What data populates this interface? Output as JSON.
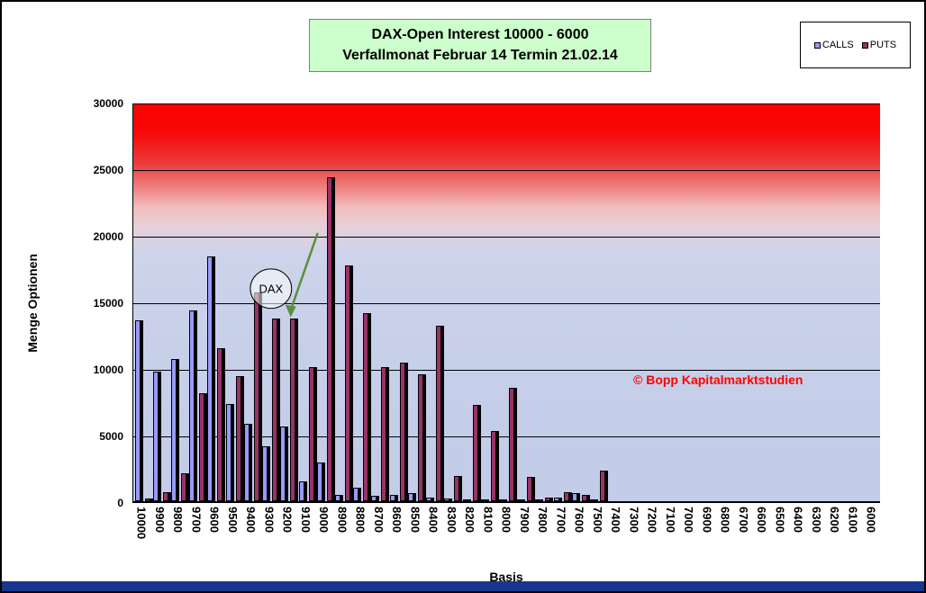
{
  "title": {
    "line1": "DAX-Open Interest 10000 -  6000",
    "line2": "Verfallmonat  Februar 14  Termin 21.02.14"
  },
  "watermark": "© Bopp Kapitalmarktstudien",
  "annotation": {
    "label": "DAX"
  },
  "colors": {
    "title_bg": "#ccffcc",
    "watermark": "#ff0000",
    "calls": "#9999FF",
    "puts": "#993366",
    "bottom_bar": "#16368f",
    "arrow": "#5a8f3c"
  },
  "chart_data": {
    "type": "bar",
    "title": "DAX-Open Interest 10000 -  6000 / Verfallmonat Februar 14 Termin 21.02.14",
    "xlabel": "Basis",
    "ylabel": "Menge Optionen",
    "ylim": [
      0,
      30000
    ],
    "ytick_interval": 5000,
    "yticks": [
      0,
      5000,
      10000,
      15000,
      20000,
      25000,
      30000
    ],
    "grid": true,
    "legend_position": "top-right",
    "categories": [
      "10000",
      "9900",
      "9800",
      "9700",
      "9600",
      "9500",
      "9400",
      "9300",
      "9200",
      "9100",
      "9000",
      "8900",
      "8800",
      "8700",
      "8600",
      "8500",
      "8400",
      "8300",
      "8200",
      "8100",
      "8000",
      "7900",
      "7800",
      "7700",
      "7600",
      "7500",
      "7400",
      "7300",
      "7200",
      "7100",
      "7000",
      "6900",
      "6800",
      "6700",
      "6600",
      "6500",
      "6400",
      "6300",
      "6200",
      "6100",
      "6000"
    ],
    "series": [
      {
        "name": "CALLS",
        "color": "#9999FF",
        "values": [
          13600,
          9700,
          10700,
          14300,
          18400,
          7300,
          5800,
          4100,
          5600,
          1500,
          2900,
          500,
          1000,
          400,
          500,
          600,
          300,
          200,
          150,
          100,
          150,
          50,
          50,
          300,
          600,
          100,
          0,
          0,
          0,
          0,
          0,
          0,
          0,
          0,
          0,
          0,
          0,
          0,
          0,
          0,
          0
        ]
      },
      {
        "name": "PUTS",
        "color": "#993366",
        "values": [
          200,
          700,
          2100,
          8100,
          11500,
          9400,
          15700,
          13700,
          13700,
          10100,
          24300,
          17700,
          14100,
          10100,
          10400,
          9500,
          13200,
          1900,
          7200,
          5300,
          8500,
          1800,
          300,
          700,
          500,
          2300,
          0,
          0,
          0,
          0,
          0,
          0,
          0,
          0,
          0,
          0,
          0,
          0,
          0,
          0,
          0
        ]
      }
    ]
  }
}
